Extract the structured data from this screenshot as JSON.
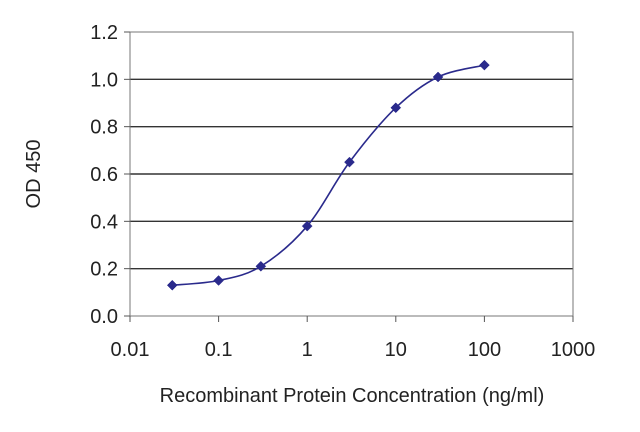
{
  "chart_data": {
    "type": "line",
    "xlabel": "Recombinant Protein Concentration (ng/ml)",
    "ylabel": "OD 450",
    "x_scale": "log",
    "xlim": [
      0.01,
      1000
    ],
    "ylim": [
      0,
      1.2
    ],
    "x_ticks": [
      0.01,
      0.1,
      1,
      10,
      100,
      1000
    ],
    "x_tick_labels": [
      "0.01",
      "0.1",
      "1",
      "10",
      "100",
      "1000"
    ],
    "y_ticks": [
      0,
      0.2,
      0.4,
      0.6,
      0.8,
      1.0,
      1.2
    ],
    "y_tick_labels": [
      "0.0",
      "0.2",
      "0.4",
      "0.6",
      "0.8",
      "1.0",
      "1.2"
    ],
    "grid": "horizontal",
    "series": [
      {
        "color": "#2a2a8c",
        "x": [
          0.03,
          0.1,
          0.3,
          1,
          3,
          10,
          30,
          100
        ],
        "y": [
          0.13,
          0.15,
          0.21,
          0.38,
          0.65,
          0.88,
          1.01,
          1.06
        ]
      }
    ]
  }
}
